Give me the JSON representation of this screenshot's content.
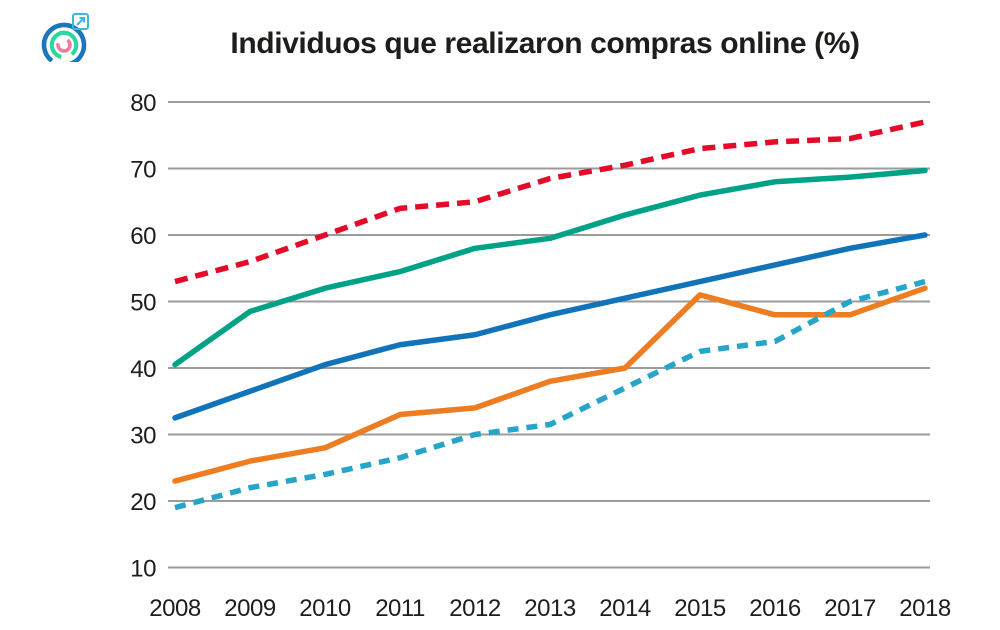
{
  "title": "Individuos que realizaron compras online (%)",
  "logo": {
    "rings": [
      {
        "color": "#1b76bc"
      },
      {
        "color": "#2bd9a0"
      },
      {
        "color": "#f07ca0"
      }
    ],
    "external_link_color": "#41b6dc"
  },
  "chart_data": {
    "type": "line",
    "x": [
      2008,
      2009,
      2010,
      2011,
      2012,
      2013,
      2014,
      2015,
      2016,
      2017,
      2018
    ],
    "series": [
      {
        "name": "line-red-dashed",
        "color": "#e30b28",
        "style": "dashed",
        "dash": "13 8",
        "values": [
          53,
          56,
          60,
          64,
          65,
          68.5,
          70.5,
          73,
          74,
          74.5,
          77
        ]
      },
      {
        "name": "line-green-solid",
        "color": "#00a287",
        "style": "solid",
        "dash": "",
        "values": [
          40.5,
          48.5,
          52,
          54.5,
          58,
          59.5,
          63,
          66,
          68,
          68.7,
          69.7
        ]
      },
      {
        "name": "line-blue-solid",
        "color": "#1173ba",
        "style": "solid",
        "dash": "",
        "values": [
          32.5,
          36.5,
          40.5,
          43.5,
          45,
          48,
          50.5,
          53,
          55.5,
          58,
          60
        ]
      },
      {
        "name": "line-orange-solid",
        "color": "#ee7d22",
        "style": "solid",
        "dash": "",
        "values": [
          23,
          26,
          28,
          33,
          34,
          38,
          40,
          51,
          48,
          48,
          52
        ]
      },
      {
        "name": "line-cyan-dashed",
        "color": "#27a5c9",
        "style": "dashed",
        "dash": "11 8",
        "values": [
          19,
          22,
          24,
          26.5,
          30,
          31.5,
          37,
          42.5,
          44,
          50,
          53
        ]
      }
    ],
    "title": "Individuos que realizaron compras online (%)",
    "xlabel": "",
    "ylabel": "",
    "ylim": [
      10,
      80
    ],
    "yticks": [
      80,
      70,
      60,
      50,
      40,
      30,
      20,
      10
    ],
    "grid": "horizontal",
    "legend": "none",
    "grid_color": "#9b9b9b",
    "tick_color": "#1d1d1b"
  }
}
